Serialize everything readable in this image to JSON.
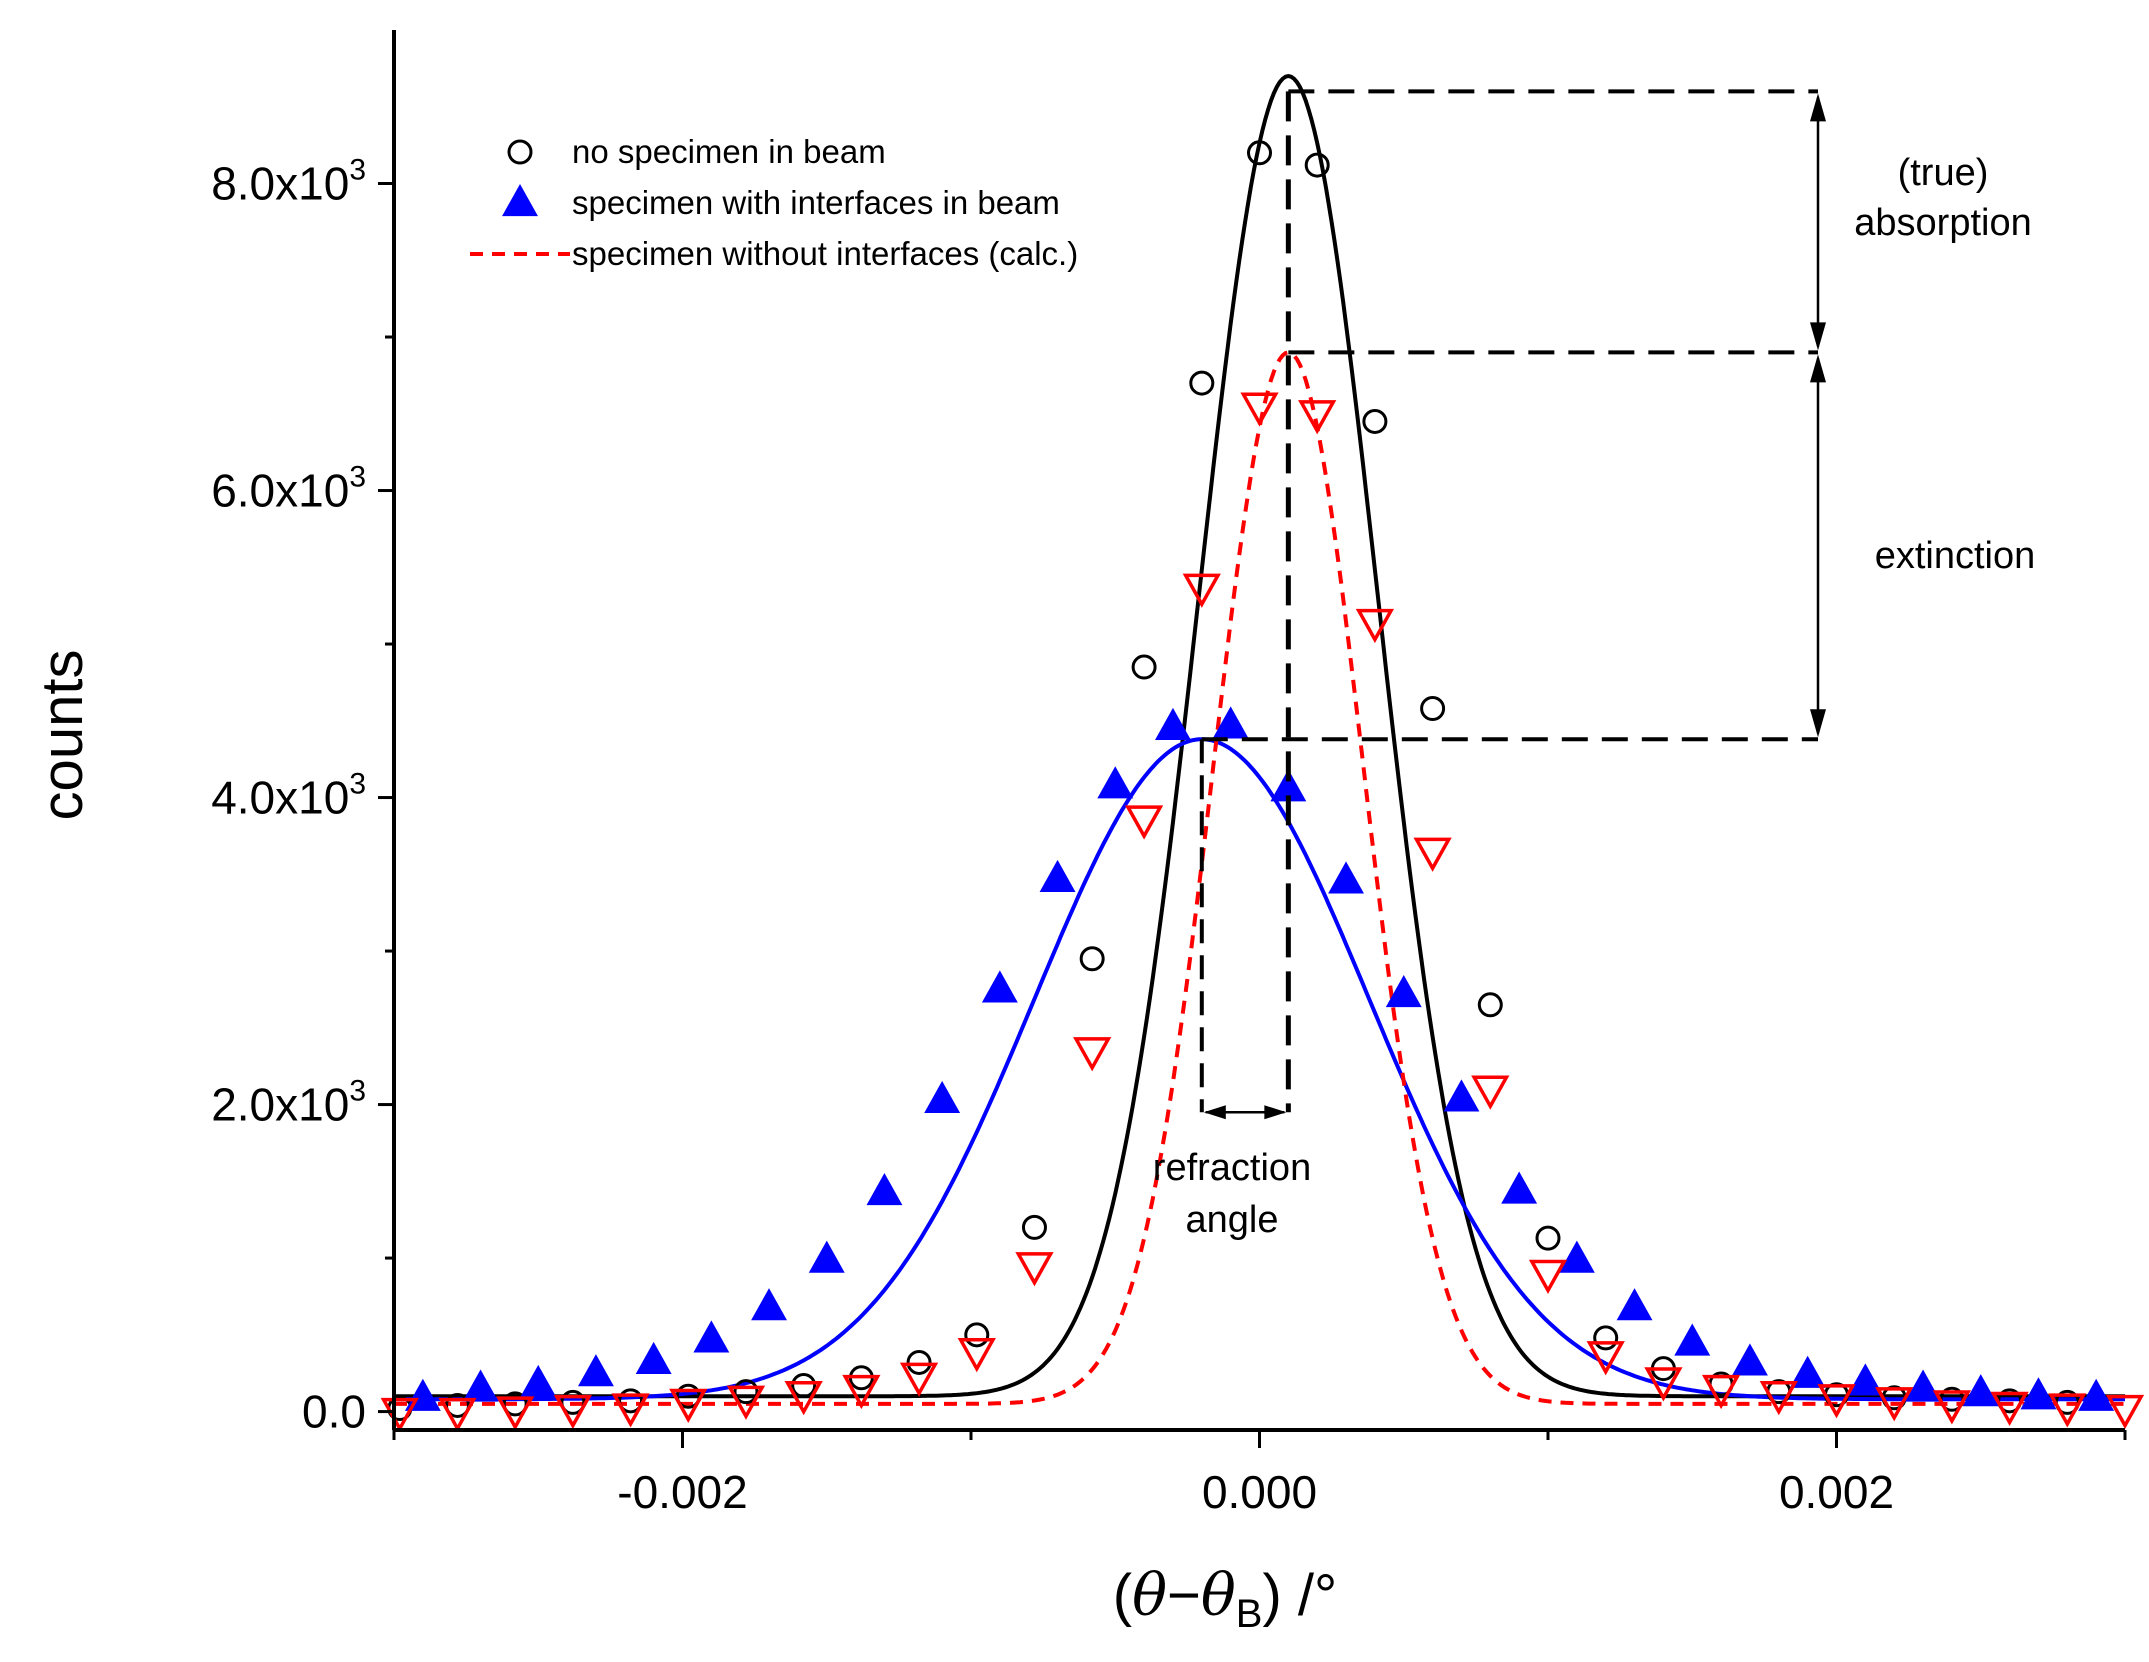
{
  "chart_data": {
    "type": "scatter",
    "title": "",
    "xlabel": "(θ−θB) /°",
    "xlabel_parts": {
      "open": "(",
      "theta1": "θ",
      "minus": "−",
      "theta2": "θ",
      "sub": "B",
      "close": ") /°"
    },
    "ylabel": "counts",
    "xlim": [
      -0.003,
      0.003
    ],
    "ylim": [
      -120,
      9000
    ],
    "x_ticks": [
      {
        "value": -0.002,
        "label": "-0.002"
      },
      {
        "value": 0.0,
        "label": "0.000"
      },
      {
        "value": 0.002,
        "label": "0.002"
      }
    ],
    "y_ticks": [
      {
        "value": 0,
        "mantissa": "0.0",
        "exp": ""
      },
      {
        "value": 2000,
        "mantissa": "2.0x10",
        "exp": "3"
      },
      {
        "value": 4000,
        "mantissa": "4.0x10",
        "exp": "3"
      },
      {
        "value": 6000,
        "mantissa": "6.0x10",
        "exp": "3"
      },
      {
        "value": 8000,
        "mantissa": "8.0x10",
        "exp": "3"
      }
    ],
    "grid": false,
    "legend_position": "top-left",
    "series": [
      {
        "name": "no specimen in beam",
        "color": "#000000",
        "marker": "open-circle",
        "fit": {
          "type": "gaussian",
          "baseline": 100,
          "amplitude": 8600,
          "center": 0.0001,
          "sigma": 0.00031
        },
        "points": [
          [
            -0.00298,
            20
          ],
          [
            -0.00278,
            40
          ],
          [
            -0.00258,
            50
          ],
          [
            -0.00238,
            60
          ],
          [
            -0.00218,
            70
          ],
          [
            -0.00198,
            100
          ],
          [
            -0.00178,
            130
          ],
          [
            -0.00158,
            170
          ],
          [
            -0.00138,
            220
          ],
          [
            -0.00118,
            320
          ],
          [
            -0.00098,
            500
          ],
          [
            -0.00078,
            1200
          ],
          [
            -0.00058,
            2950
          ],
          [
            -0.0004,
            4850
          ],
          [
            -0.0002,
            6700
          ],
          [
            0.0,
            8200
          ],
          [
            0.0002,
            8120
          ],
          [
            0.0004,
            6450
          ],
          [
            0.0006,
            4580
          ],
          [
            0.0008,
            2650
          ],
          [
            0.001,
            1130
          ],
          [
            0.0012,
            480
          ],
          [
            0.0014,
            280
          ],
          [
            0.0016,
            180
          ],
          [
            0.0018,
            130
          ],
          [
            0.002,
            110
          ],
          [
            0.0022,
            90
          ],
          [
            0.0024,
            80
          ],
          [
            0.0026,
            70
          ],
          [
            0.0028,
            60
          ]
        ]
      },
      {
        "name": "specimen with interfaces in beam",
        "color": "#0000ff",
        "marker": "filled-triangle-up",
        "fit": {
          "type": "gaussian",
          "baseline": 80,
          "amplitude": 4300,
          "center": -0.0002,
          "sigma": 0.00058
        },
        "points": [
          [
            -0.0029,
            90
          ],
          [
            -0.0027,
            150
          ],
          [
            -0.0025,
            180
          ],
          [
            -0.0023,
            250
          ],
          [
            -0.0021,
            330
          ],
          [
            -0.0019,
            470
          ],
          [
            -0.0017,
            680
          ],
          [
            -0.0015,
            990
          ],
          [
            -0.0013,
            1430
          ],
          [
            -0.0011,
            2030
          ],
          [
            -0.0009,
            2750
          ],
          [
            -0.0007,
            3470
          ],
          [
            -0.0005,
            4080
          ],
          [
            -0.0003,
            4460
          ],
          [
            -0.0001,
            4470
          ],
          [
            0.0001,
            4060
          ],
          [
            0.0003,
            3460
          ],
          [
            0.0005,
            2720
          ],
          [
            0.0007,
            2040
          ],
          [
            0.0009,
            1440
          ],
          [
            0.0011,
            990
          ],
          [
            0.0013,
            680
          ],
          [
            0.0015,
            450
          ],
          [
            0.0017,
            320
          ],
          [
            0.0019,
            240
          ],
          [
            0.0021,
            190
          ],
          [
            0.0023,
            150
          ],
          [
            0.0025,
            120
          ],
          [
            0.0027,
            100
          ],
          [
            0.0029,
            90
          ]
        ]
      },
      {
        "name": "specimen without interfaces (calc.)",
        "color": "#ff0000",
        "marker": "open-triangle-down",
        "fit": {
          "type": "gaussian",
          "baseline": 50,
          "amplitude": 6850,
          "center": 0.0001,
          "sigma": 0.00026
        },
        "points": [
          [
            -0.00298,
            0
          ],
          [
            -0.00278,
            0
          ],
          [
            -0.00258,
            10
          ],
          [
            -0.00238,
            20
          ],
          [
            -0.00218,
            30
          ],
          [
            -0.00198,
            60
          ],
          [
            -0.00178,
            80
          ],
          [
            -0.00158,
            110
          ],
          [
            -0.00138,
            150
          ],
          [
            -0.00118,
            230
          ],
          [
            -0.00098,
            390
          ],
          [
            -0.00078,
            950
          ],
          [
            -0.00058,
            2350
          ],
          [
            -0.0004,
            3860
          ],
          [
            -0.0002,
            5370
          ],
          [
            0.0,
            6550
          ],
          [
            0.0002,
            6500
          ],
          [
            0.0004,
            5140
          ],
          [
            0.0006,
            3650
          ],
          [
            0.0008,
            2100
          ],
          [
            0.001,
            900
          ],
          [
            0.0012,
            370
          ],
          [
            0.0014,
            200
          ],
          [
            0.0016,
            150
          ],
          [
            0.0018,
            110
          ],
          [
            0.002,
            90
          ],
          [
            0.0022,
            70
          ],
          [
            0.0024,
            50
          ],
          [
            0.0026,
            40
          ],
          [
            0.0028,
            30
          ],
          [
            0.003,
            20
          ]
        ]
      }
    ],
    "annotations": {
      "absorption_line1": "(true)",
      "absorption_line2": "absorption",
      "extinction": "extinction",
      "refraction_line1": "refraction",
      "refraction_line2": "angle",
      "levels": {
        "no_specimen_peak": 8600,
        "without_interfaces_peak": 6900,
        "with_interfaces_peak": 4380
      },
      "peak_positions": {
        "no_specimen": 0.0001,
        "with_interfaces": -0.0002
      },
      "refraction_bracket_y": 1950
    }
  }
}
